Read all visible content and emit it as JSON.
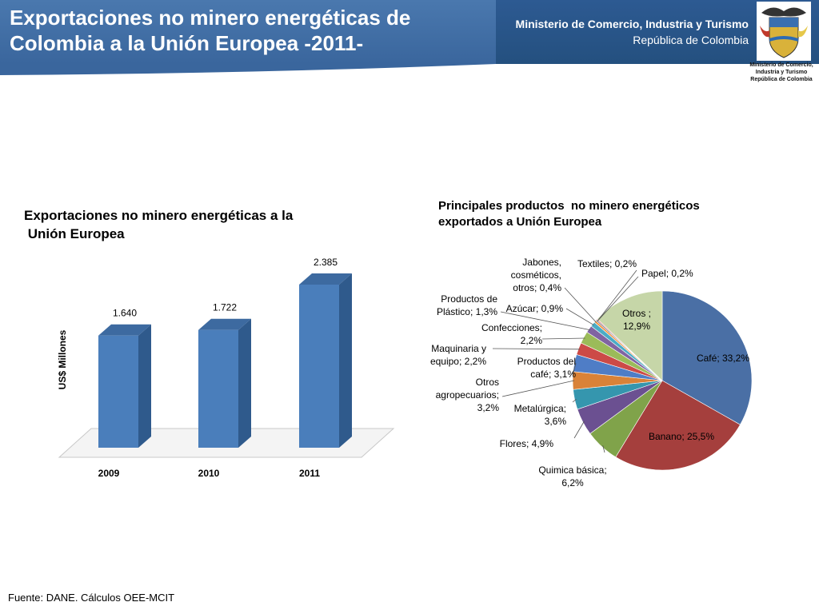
{
  "header": {
    "title_line1": "Exportaciones no minero energéticas de",
    "title_line2": "Colombia a la Unión Europea -2011-",
    "ministry_name": "Ministerio de Comercio, Industria y Turismo",
    "ministry_country": "República de Colombia",
    "seal_caption": [
      "Ministerio de Comercio,",
      "Industria y Turismo",
      "República de Colombia"
    ]
  },
  "colors": {
    "header_band": "#3f6ea6",
    "bar": "#4a7ebb",
    "bar_side": "#2f5a8c"
  },
  "chart_data": [
    {
      "type": "bar",
      "title_line1": "Exportaciones no minero energéticas a la",
      "title_line2": " Unión Europea",
      "ylabel": "US$ Millones",
      "categories": [
        "2009",
        "2010",
        "2011"
      ],
      "values": [
        1640,
        1722,
        2385
      ],
      "data_labels": [
        "1.640",
        "1.722",
        "2.385"
      ],
      "ylim": [
        0,
        2385
      ]
    },
    {
      "type": "pie",
      "title_line1": "Principales productos  no minero energéticos",
      "title_line2": "exportados a Unión Europea",
      "slices": [
        {
          "label": [
            "Café; 33,2%"
          ],
          "value": 33.2,
          "color": "#4a6fa5"
        },
        {
          "label": [
            "Banano; 25,5%"
          ],
          "value": 25.5,
          "color": "#a53f3d"
        },
        {
          "label": [
            "Quimica básica;",
            "6,2%"
          ],
          "value": 6.2,
          "color": "#80a34a"
        },
        {
          "label": [
            "Flores; 4,9%"
          ],
          "value": 4.9,
          "color": "#6b5091"
        },
        {
          "label": [
            "Metalúrgica;",
            "3,6%"
          ],
          "value": 3.6,
          "color": "#3596ae"
        },
        {
          "label": [
            "Otros",
            "agropecuarios;",
            "3,2%"
          ],
          "value": 3.2,
          "color": "#d98238"
        },
        {
          "label": [
            "Productos del",
            "café; 3,1%"
          ],
          "value": 3.1,
          "color": "#4f7dc6"
        },
        {
          "label": [
            "Maquinaria y",
            "equipo; 2,2%"
          ],
          "value": 2.2,
          "color": "#cc4a47"
        },
        {
          "label": [
            "Confecciones;",
            "2,2%"
          ],
          "value": 2.2,
          "color": "#9bbb59"
        },
        {
          "label": [
            "Productos de",
            "Plástico; 1,3%"
          ],
          "value": 1.3,
          "color": "#8064a2"
        },
        {
          "label": [
            "Azúcar; 0,9%"
          ],
          "value": 0.9,
          "color": "#4bacc6"
        },
        {
          "label": [
            "Jabones,",
            "cosméticos,",
            "otros; 0,4%"
          ],
          "value": 0.4,
          "color": "#f79646"
        },
        {
          "label": [
            "Textiles; 0,2%"
          ],
          "value": 0.2,
          "color": "#2c4d75"
        },
        {
          "label": [
            "Papel; 0,2%"
          ],
          "value": 0.2,
          "color": "#e07c7a"
        },
        {
          "label": [
            "Otros ;",
            "12,9%"
          ],
          "value": 12.9,
          "color": "#c6d6a8"
        }
      ]
    }
  ],
  "footer": {
    "source": "Fuente: DANE. Cálculos OEE-MCIT"
  }
}
